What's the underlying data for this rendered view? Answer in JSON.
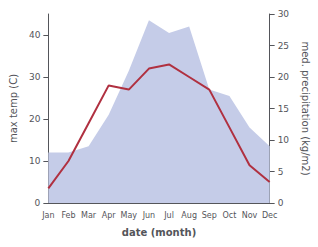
{
  "chart_data": {
    "type": "line",
    "xlabel": "date (month)",
    "ylabel": "max temp (C)",
    "y2label": "med. precipitation (kg/m2)",
    "categories": [
      "Jan",
      "Feb",
      "Mar",
      "Apr",
      "May",
      "Jun",
      "Jul",
      "Aug",
      "Sep",
      "Oct",
      "Nov",
      "Dec"
    ],
    "series": [
      {
        "type": "area",
        "axis": "y2",
        "color": "#c5cce8",
        "values": [
          8,
          8,
          9,
          14,
          21,
          29,
          27,
          28,
          18,
          17,
          12,
          9
        ]
      },
      {
        "type": "line",
        "color": "#b03040",
        "values": [
          3.5,
          10,
          19,
          28,
          27,
          32,
          33,
          30,
          27,
          18,
          9,
          5
        ]
      }
    ],
    "ylim": [
      0,
      45
    ],
    "yticks": [
      0,
      10,
      20,
      30,
      40
    ],
    "y2lim": [
      0,
      30
    ],
    "y2ticks": [
      0,
      5,
      10,
      15,
      20,
      25,
      30
    ],
    "grid": false
  }
}
